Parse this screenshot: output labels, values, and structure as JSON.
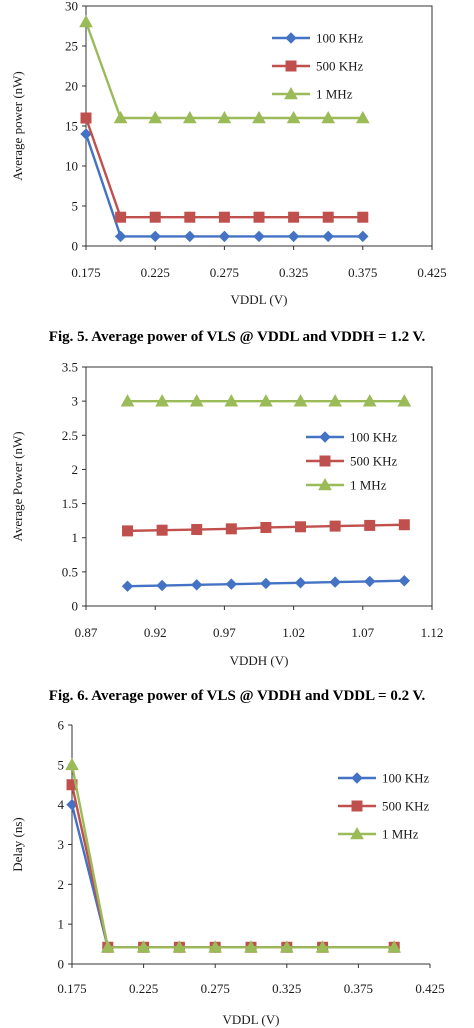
{
  "captions": {
    "fig5": "Fig. 5. Average power of VLS @ VDDL and VDDH = 1.2 V.",
    "fig6": "Fig. 6. Average power of VLS @ VDDH and VDDL = 0.2 V."
  },
  "colors": {
    "100 KHz": "#4472C4",
    "500 KHz": "#C0504D",
    "1 MHz": "#9BBB59",
    "axis": "#333333"
  },
  "chart_data": [
    {
      "type": "line",
      "xlabel": "VDDL (V)",
      "ylabel": "Average power (nW)",
      "xlim": [
        0.175,
        0.425
      ],
      "ylim": [
        0,
        30
      ],
      "xticks": [
        "0.175",
        "0.225",
        "0.275",
        "0.325",
        "0.375",
        "0.425"
      ],
      "yticks": [
        "0",
        "5",
        "10",
        "15",
        "20",
        "25",
        "30"
      ],
      "legend_position": "right",
      "series": [
        {
          "name": "100 KHz",
          "marker": "diamond",
          "x": [
            0.175,
            0.2,
            0.225,
            0.25,
            0.275,
            0.3,
            0.325,
            0.35,
            0.375
          ],
          "values": [
            14,
            1.2,
            1.2,
            1.2,
            1.2,
            1.2,
            1.2,
            1.2,
            1.2
          ]
        },
        {
          "name": "500 KHz",
          "marker": "square",
          "x": [
            0.175,
            0.2,
            0.225,
            0.25,
            0.275,
            0.3,
            0.325,
            0.35,
            0.375
          ],
          "values": [
            16,
            3.6,
            3.6,
            3.6,
            3.6,
            3.6,
            3.6,
            3.6,
            3.6
          ]
        },
        {
          "name": "1 MHz",
          "marker": "triangle",
          "x": [
            0.175,
            0.2,
            0.225,
            0.25,
            0.275,
            0.3,
            0.325,
            0.35,
            0.375
          ],
          "values": [
            28,
            16,
            16,
            16,
            16,
            16,
            16,
            16,
            16
          ]
        }
      ]
    },
    {
      "type": "line",
      "xlabel": "VDDH (V)",
      "ylabel": "Average Power (nW)",
      "xlim": [
        0.87,
        1.12
      ],
      "ylim": [
        0,
        3.5
      ],
      "xticks": [
        "0.87",
        "0.92",
        "0.97",
        "1.02",
        "1.07",
        "1.12"
      ],
      "yticks": [
        "0",
        "0.5",
        "1",
        "1.5",
        "2",
        "2.5",
        "3",
        "3.5"
      ],
      "legend_position": "right",
      "series": [
        {
          "name": "100 KHz",
          "marker": "diamond",
          "x": [
            0.9,
            0.925,
            0.95,
            0.975,
            1.0,
            1.025,
            1.05,
            1.075,
            1.1
          ],
          "values": [
            0.29,
            0.3,
            0.31,
            0.32,
            0.33,
            0.34,
            0.35,
            0.36,
            0.37
          ]
        },
        {
          "name": "500 KHz",
          "marker": "square",
          "x": [
            0.9,
            0.925,
            0.95,
            0.975,
            1.0,
            1.025,
            1.05,
            1.075,
            1.1
          ],
          "values": [
            1.1,
            1.11,
            1.12,
            1.13,
            1.15,
            1.16,
            1.17,
            1.18,
            1.19
          ]
        },
        {
          "name": "1 MHz",
          "marker": "triangle",
          "x": [
            0.9,
            0.925,
            0.95,
            0.975,
            1.0,
            1.025,
            1.05,
            1.075,
            1.1
          ],
          "values": [
            3.0,
            3.0,
            3.0,
            3.0,
            3.0,
            3.0,
            3.0,
            3.0,
            3.0
          ]
        }
      ]
    },
    {
      "type": "line",
      "xlabel": "VDDL (V)",
      "ylabel": "Delay (ns)",
      "xlim": [
        0.175,
        0.425
      ],
      "ylim": [
        0,
        6
      ],
      "xticks": [
        "0.175",
        "0.225",
        "0.275",
        "0.325",
        "0.375",
        "0.425"
      ],
      "yticks": [
        "0",
        "1",
        "2",
        "3",
        "4",
        "5",
        "6"
      ],
      "legend_position": "right",
      "series": [
        {
          "name": "100 KHz",
          "marker": "diamond",
          "x": [
            0.175,
            0.2,
            0.225,
            0.25,
            0.275,
            0.3,
            0.325,
            0.35,
            0.4
          ],
          "values": [
            4,
            0.42,
            0.42,
            0.42,
            0.42,
            0.42,
            0.42,
            0.42,
            0.42
          ]
        },
        {
          "name": "500 KHz",
          "marker": "square",
          "x": [
            0.175,
            0.2,
            0.225,
            0.25,
            0.275,
            0.3,
            0.325,
            0.35,
            0.4
          ],
          "values": [
            4.5,
            0.42,
            0.42,
            0.42,
            0.42,
            0.42,
            0.42,
            0.42,
            0.42
          ]
        },
        {
          "name": "1 MHz",
          "marker": "triangle",
          "x": [
            0.175,
            0.2,
            0.225,
            0.25,
            0.275,
            0.3,
            0.325,
            0.35,
            0.4
          ],
          "values": [
            5,
            0.42,
            0.42,
            0.42,
            0.42,
            0.42,
            0.42,
            0.42,
            0.42
          ]
        }
      ]
    }
  ]
}
